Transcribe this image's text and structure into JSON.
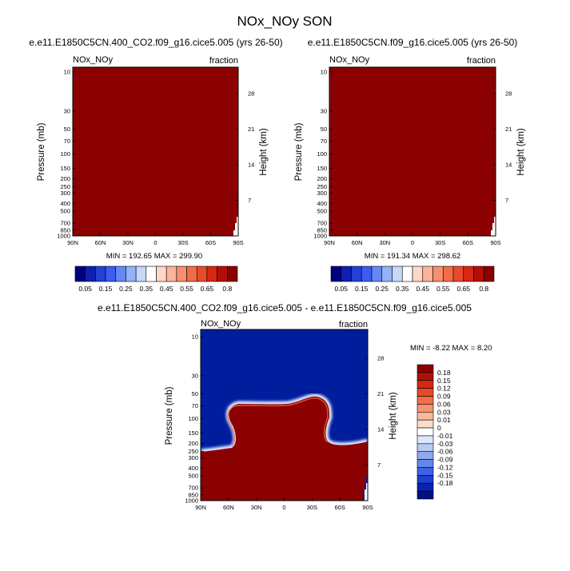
{
  "title": "NOx_NOy SON",
  "colors": {
    "filled": "#8b0000",
    "diff_background": "#001d9e",
    "pos_scale": [
      "#00007f",
      "#0f1fb0",
      "#2540d6",
      "#3a5ef0",
      "#6588f5",
      "#95b2f7",
      "#c6d8fa",
      "#ffffff",
      "#fdd8c6",
      "#fbb49a",
      "#f8906f",
      "#f26c49",
      "#e94a2a",
      "#d82815",
      "#b30e07",
      "#8b0000"
    ],
    "diff_scale": [
      "#8b0000",
      "#b0100a",
      "#d42a13",
      "#e84a29",
      "#f16e4a",
      "#f79273",
      "#fbb89c",
      "#fddcca",
      "#ffffff",
      "#dce7fa",
      "#b8cbf4",
      "#8eaaf0",
      "#6587ec",
      "#3c63e3",
      "#1d3fcf",
      "#0a22b2",
      "#001082"
    ]
  },
  "chart_data": [
    {
      "type": "heatmap",
      "title": "e.e11.E1850C5CN.400_CO2.f09_g16.cice5.005 (yrs 26-50)",
      "corner_left": "NOx_NOy",
      "corner_right": "fraction",
      "xticks": [
        "90N",
        "60N",
        "30N",
        "0",
        "30S",
        "60S",
        "90S"
      ],
      "yticks": [
        "10",
        "30",
        "50",
        "70",
        "100",
        "150",
        "200",
        "250",
        "300",
        "400",
        "500",
        "700",
        "850",
        "1000"
      ],
      "ylabel": "Pressure (mb)",
      "y2ticks": [
        "28",
        "21",
        "14",
        "7"
      ],
      "y2label": "Height (km)",
      "stats": "MIN = 192.65  MAX = 299.90",
      "colorbar_labels": [
        "0.05",
        "0.15",
        "0.25",
        "0.35",
        "0.45",
        "0.55",
        "0.65",
        "0.8"
      ],
      "field_value": 0.85
    },
    {
      "type": "heatmap",
      "title": "e.e11.E1850C5CN.f09_g16.cice5.005 (yrs 26-50)",
      "corner_left": "NOx_NOy",
      "corner_right": "fraction",
      "xticks": [
        "90N",
        "60N",
        "30N",
        "0",
        "30S",
        "60S",
        "90S"
      ],
      "yticks": [
        "10",
        "30",
        "50",
        "70",
        "100",
        "150",
        "200",
        "250",
        "300",
        "400",
        "500",
        "700",
        "850",
        "1000"
      ],
      "ylabel": "Pressure (mb)",
      "y2ticks": [
        "28",
        "21",
        "14",
        "7"
      ],
      "y2label": "Height (km)",
      "stats": "MIN = 191.34  MAX = 298.62",
      "colorbar_labels": [
        "0.05",
        "0.15",
        "0.25",
        "0.35",
        "0.45",
        "0.55",
        "0.65",
        "0.8"
      ],
      "field_value": 0.85
    },
    {
      "type": "heatmap",
      "title": "e.e11.E1850C5CN.400_CO2.f09_g16.cice5.005 - e.e11.E1850C5CN.f09_g16.cice5.005",
      "corner_left": "NOx_NOy",
      "corner_right": "fraction",
      "xticks": [
        "90N",
        "60N",
        "30N",
        "0",
        "30S",
        "60S",
        "90S"
      ],
      "yticks": [
        "10",
        "30",
        "50",
        "70",
        "100",
        "150",
        "200",
        "250",
        "300",
        "400",
        "500",
        "700",
        "850",
        "1000"
      ],
      "ylabel": "Pressure (mb)",
      "y2ticks": [
        "28",
        "21",
        "14",
        "7"
      ],
      "y2label": "Height (km)",
      "stats": "MIN =  -8.22  MAX =   8.20",
      "colorbar_labels": [
        "0.18",
        "0.15",
        "0.12",
        "0.09",
        "0.06",
        "0.03",
        "0.01",
        "0",
        "-0.01",
        "-0.03",
        "-0.06",
        "-0.09",
        "-0.12",
        "-0.15",
        "-0.18"
      ],
      "regions": {
        "upper_negative": -0.18,
        "lower_positive": 0.18
      }
    }
  ]
}
